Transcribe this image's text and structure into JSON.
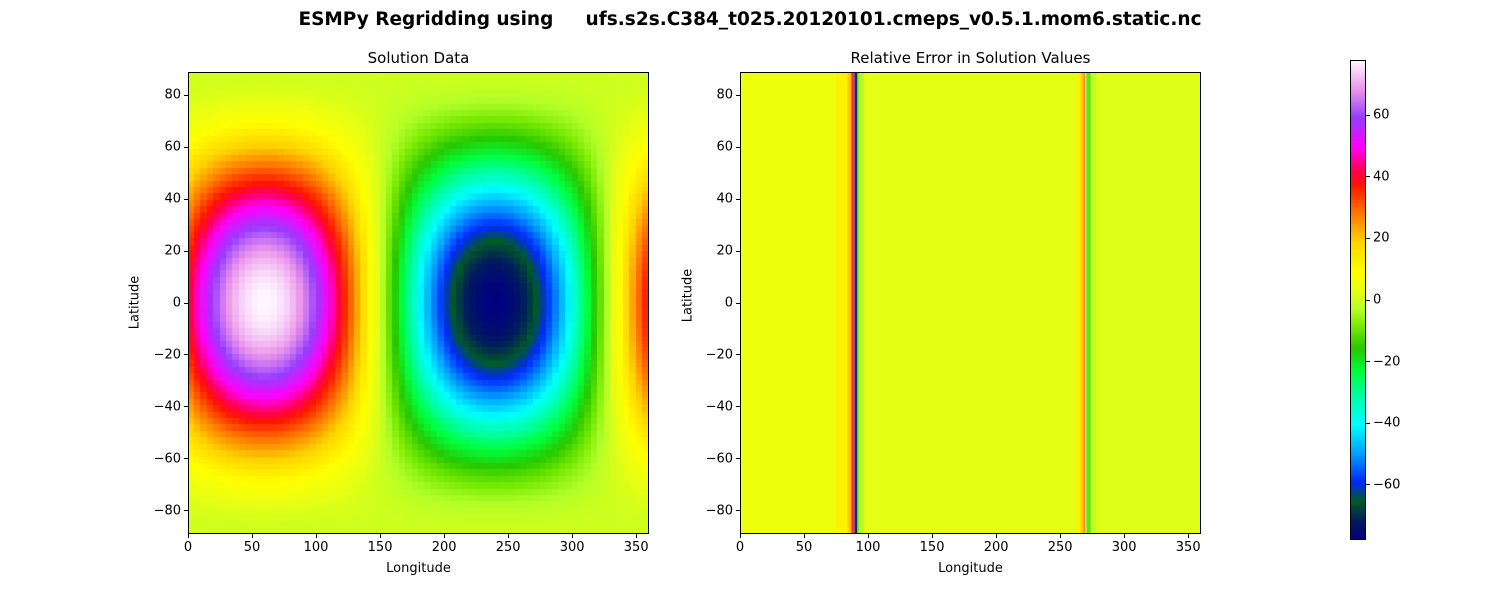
{
  "figure": {
    "title_prefix": "ESMPy Regridding using",
    "title_file": "ufs.s2s.C384_t025.20120101.cmeps_v0.5.1.mom6.static.nc"
  },
  "colormap": {
    "name": "gist_ncar",
    "range": [
      -78,
      78
    ],
    "ticks": [
      -60,
      -40,
      -20,
      0,
      20,
      40,
      60
    ],
    "tick_labels": [
      "−60",
      "−40",
      "−20",
      "0",
      "20",
      "40",
      "60"
    ]
  },
  "chart_data": [
    {
      "type": "heatmap",
      "title": "Solution Data",
      "xlabel": "Longitude",
      "ylabel": "Latitude",
      "xlim": [
        0,
        360
      ],
      "ylim": [
        -89,
        89
      ],
      "xticks": [
        0,
        50,
        100,
        150,
        200,
        250,
        300,
        350
      ],
      "xtick_labels": [
        "0",
        "50",
        "100",
        "150",
        "200",
        "250",
        "300",
        "350"
      ],
      "yticks": [
        -80,
        -60,
        -40,
        -20,
        0,
        20,
        40,
        60,
        80
      ],
      "ytick_labels": [
        "−80",
        "−60",
        "−40",
        "−20",
        "0",
        "20",
        "40",
        "60",
        "80"
      ],
      "field": "2 + cos(lat)^2 * cos(2*lon) style analytic field: max ≈ 78 near lon 60, lat 0; min ≈ -78 near lon 240, lat 0",
      "grid": {
        "nlon": 72,
        "nlat": 72
      },
      "value_range": [
        -78,
        78
      ],
      "extrema": [
        {
          "lon": 60,
          "lat": 0,
          "value": 78
        },
        {
          "lon": 240,
          "lat": 0,
          "value": -78
        }
      ]
    },
    {
      "type": "heatmap",
      "title": "Relative Error in Solution Values",
      "xlabel": "Longitude",
      "ylabel": "Latitude",
      "xlim": [
        0,
        360
      ],
      "ylim": [
        -89,
        89
      ],
      "xticks": [
        0,
        50,
        100,
        150,
        200,
        250,
        300,
        350
      ],
      "xtick_labels": [
        "0",
        "50",
        "100",
        "150",
        "200",
        "250",
        "300",
        "350"
      ],
      "yticks": [
        -80,
        -60,
        -40,
        -20,
        0,
        20,
        40,
        60,
        80
      ],
      "ytick_labels": [
        "−80",
        "−60",
        "−40",
        "−20",
        "0",
        "20",
        "40",
        "60",
        "80"
      ],
      "value_range": [
        -78,
        78
      ],
      "baseline_value": 3,
      "bands": [
        {
          "lon_start": 0,
          "lon_end": 75,
          "value": 5
        },
        {
          "lon_start": 75,
          "lon_end": 84,
          "value": 12
        },
        {
          "lon_start": 84,
          "lon_end": 87,
          "value": 20
        },
        {
          "lon_start": 87,
          "lon_end": 88.5,
          "value": 38
        },
        {
          "lon_start": 88.5,
          "lon_end": 89.5,
          "value": 55
        },
        {
          "lon_start": 89.5,
          "lon_end": 90.5,
          "value": -72
        },
        {
          "lon_start": 90.5,
          "lon_end": 91.5,
          "value": -78
        },
        {
          "lon_start": 91.5,
          "lon_end": 93,
          "value": -8
        },
        {
          "lon_start": 93,
          "lon_end": 97,
          "value": -3
        },
        {
          "lon_start": 97,
          "lon_end": 263,
          "value": 3
        },
        {
          "lon_start": 263,
          "lon_end": 266,
          "value": 12
        },
        {
          "lon_start": 266,
          "lon_end": 268.5,
          "value": 20
        },
        {
          "lon_start": 268.5,
          "lon_end": 269.5,
          "value": 30
        },
        {
          "lon_start": 269.5,
          "lon_end": 270.5,
          "value": 78
        },
        {
          "lon_start": 270.5,
          "lon_end": 271.5,
          "value": -20
        },
        {
          "lon_start": 271.5,
          "lon_end": 274,
          "value": -10
        },
        {
          "lon_start": 274,
          "lon_end": 278,
          "value": -2
        },
        {
          "lon_start": 278,
          "lon_end": 360,
          "value": 2
        }
      ]
    }
  ]
}
